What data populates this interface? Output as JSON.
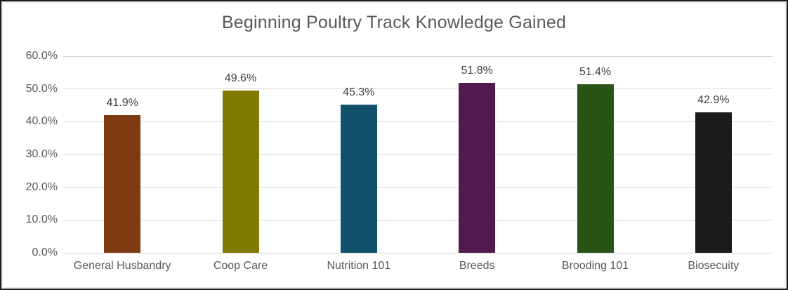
{
  "chart_data": {
    "type": "bar",
    "title": "Beginning Poultry Track Knowledge Gained",
    "categories": [
      "General Husbandry",
      "Coop Care",
      "Nutrition 101",
      "Breeds",
      "Brooding 101",
      "Biosecuity"
    ],
    "values": [
      41.9,
      49.6,
      45.3,
      51.8,
      51.4,
      42.9
    ],
    "value_labels": [
      "41.9%",
      "49.6%",
      "45.3%",
      "51.8%",
      "51.4%",
      "42.9%"
    ],
    "bar_colors": [
      "#7E3B12",
      "#807B00",
      "#11516C",
      "#531A4F",
      "#2A5316",
      "#1A1A1A"
    ],
    "xlabel": "",
    "ylabel": "",
    "ylim": [
      0,
      60
    ],
    "ytick_step": 10,
    "ytick_labels": [
      "0.0%",
      "10.0%",
      "20.0%",
      "30.0%",
      "40.0%",
      "50.0%",
      "60.0%"
    ],
    "grid": true,
    "legend": "none",
    "colors": {
      "title_text": "#595959",
      "axis_text": "#595959",
      "value_text": "#3F3F3F",
      "gridline": "#D9D9D9",
      "background": "#FFFFFF",
      "frame_border": "#1A1A1A"
    }
  }
}
